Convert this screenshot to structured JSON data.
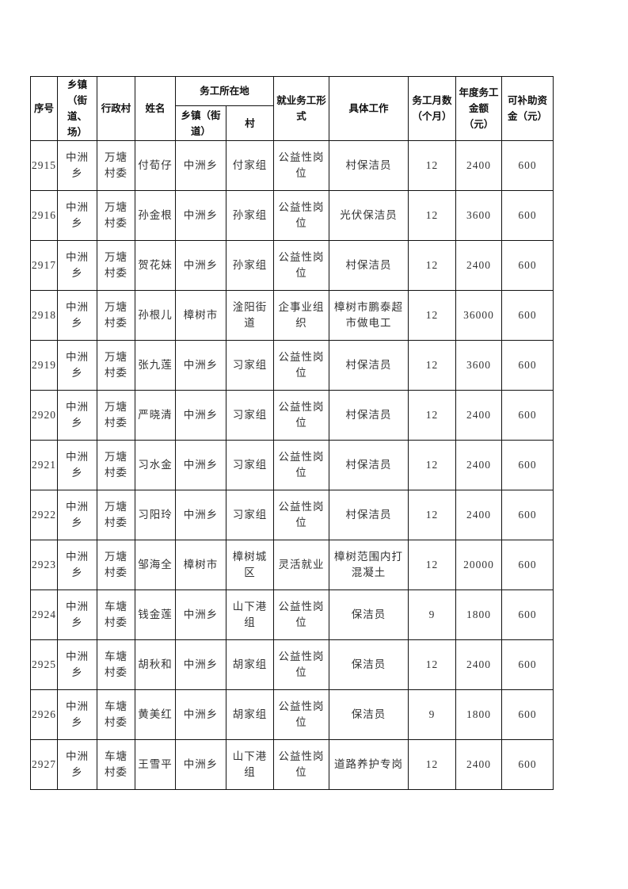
{
  "headers": {
    "seq": "序号",
    "town": "乡镇（街道、场）",
    "village": "行政村",
    "name": "姓名",
    "work_location": "务工所在地",
    "work_town": "乡镇（街道）",
    "work_village": "村",
    "employment_form": "就业务工形式",
    "job": "具体工作",
    "months": "务工月数（个月）",
    "annual_amount": "年度务工金额（元）",
    "subsidy": "可补助资金（元）"
  },
  "rows": [
    {
      "seq": "2915",
      "town": "中洲乡",
      "village": "万塘村委",
      "name": "付荀仔",
      "work_town": "中洲乡",
      "work_village": "付家组",
      "form": "公益性岗位",
      "job": "村保洁员",
      "months": "12",
      "amount": "2400",
      "subsidy": "600"
    },
    {
      "seq": "2916",
      "town": "中洲乡",
      "village": "万塘村委",
      "name": "孙金根",
      "work_town": "中洲乡",
      "work_village": "孙家组",
      "form": "公益性岗位",
      "job": "光伏保洁员",
      "months": "12",
      "amount": "3600",
      "subsidy": "600"
    },
    {
      "seq": "2917",
      "town": "中洲乡",
      "village": "万塘村委",
      "name": "贺花妹",
      "work_town": "中洲乡",
      "work_village": "孙家组",
      "form": "公益性岗位",
      "job": "村保洁员",
      "months": "12",
      "amount": "2400",
      "subsidy": "600"
    },
    {
      "seq": "2918",
      "town": "中洲乡",
      "village": "万塘村委",
      "name": "孙根儿",
      "work_town": "樟树市",
      "work_village": "淦阳街道",
      "form": "企事业组织",
      "job": "樟树市鹏泰超市做电工",
      "months": "12",
      "amount": "36000",
      "subsidy": "600"
    },
    {
      "seq": "2919",
      "town": "中洲乡",
      "village": "万塘村委",
      "name": "张九莲",
      "work_town": "中洲乡",
      "work_village": "习家组",
      "form": "公益性岗位",
      "job": "村保洁员",
      "months": "12",
      "amount": "3600",
      "subsidy": "600"
    },
    {
      "seq": "2920",
      "town": "中洲乡",
      "village": "万塘村委",
      "name": "严晓清",
      "work_town": "中洲乡",
      "work_village": "习家组",
      "form": "公益性岗位",
      "job": "村保洁员",
      "months": "12",
      "amount": "2400",
      "subsidy": "600"
    },
    {
      "seq": "2921",
      "town": "中洲乡",
      "village": "万塘村委",
      "name": "习水金",
      "work_town": "中洲乡",
      "work_village": "习家组",
      "form": "公益性岗位",
      "job": "村保洁员",
      "months": "12",
      "amount": "2400",
      "subsidy": "600"
    },
    {
      "seq": "2922",
      "town": "中洲乡",
      "village": "万塘村委",
      "name": "习阳玲",
      "work_town": "中洲乡",
      "work_village": "习家组",
      "form": "公益性岗位",
      "job": "村保洁员",
      "months": "12",
      "amount": "2400",
      "subsidy": "600"
    },
    {
      "seq": "2923",
      "town": "中洲乡",
      "village": "万塘村委",
      "name": "邹海全",
      "work_town": "樟树市",
      "work_village": "樟树城区",
      "form": "灵活就业",
      "job": "樟树范围内打混凝土",
      "months": "12",
      "amount": "20000",
      "subsidy": "600"
    },
    {
      "seq": "2924",
      "town": "中洲乡",
      "village": "车塘村委",
      "name": "钱金莲",
      "work_town": "中洲乡",
      "work_village": "山下港组",
      "form": "公益性岗位",
      "job": "保洁员",
      "months": "9",
      "amount": "1800",
      "subsidy": "600"
    },
    {
      "seq": "2925",
      "town": "中洲乡",
      "village": "车塘村委",
      "name": "胡秋和",
      "work_town": "中洲乡",
      "work_village": "胡家组",
      "form": "公益性岗位",
      "job": "保洁员",
      "months": "12",
      "amount": "2400",
      "subsidy": "600"
    },
    {
      "seq": "2926",
      "town": "中洲乡",
      "village": "车塘村委",
      "name": "黄美红",
      "work_town": "中洲乡",
      "work_village": "胡家组",
      "form": "公益性岗位",
      "job": "保洁员",
      "months": "9",
      "amount": "1800",
      "subsidy": "600"
    },
    {
      "seq": "2927",
      "town": "中洲乡",
      "village": "车塘村委",
      "name": "王雪平",
      "work_town": "中洲乡",
      "work_village": "山下港组",
      "form": "公益性岗位",
      "job": "道路养护专岗",
      "months": "12",
      "amount": "2400",
      "subsidy": "600"
    }
  ]
}
